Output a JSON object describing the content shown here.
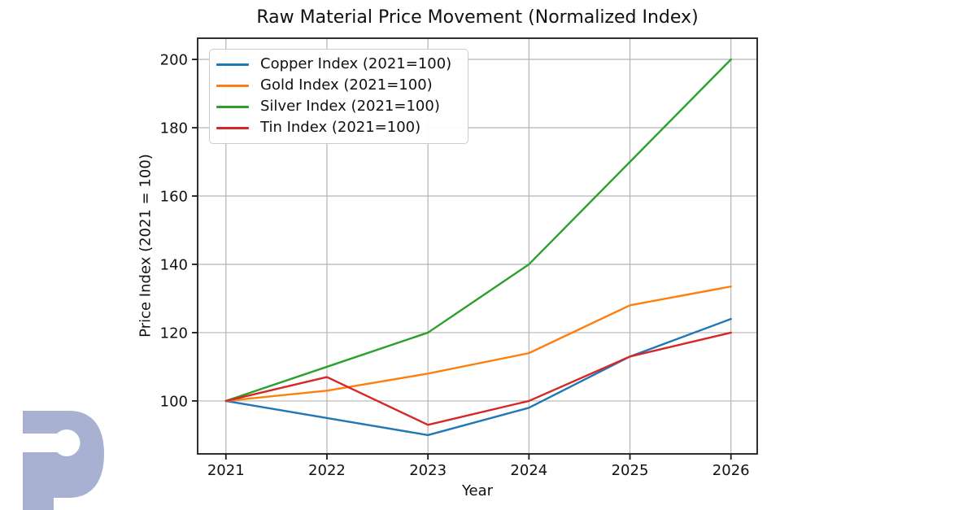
{
  "chart_data": {
    "type": "line",
    "title": "Raw Material Price Movement (Normalized Index)",
    "xlabel": "Year",
    "ylabel": "Price Index (2021 = 100)",
    "x": [
      2021,
      2022,
      2023,
      2024,
      2025,
      2026
    ],
    "series": [
      {
        "name": "Copper Index (2021=100)",
        "color": "#1f77b4",
        "values": [
          100,
          95,
          90,
          98,
          113,
          124
        ]
      },
      {
        "name": "Gold Index (2021=100)",
        "color": "#ff7f0e",
        "values": [
          100,
          103,
          108,
          114,
          128,
          133.5
        ]
      },
      {
        "name": "Silver Index (2021=100)",
        "color": "#2ca02c",
        "values": [
          100,
          110,
          120,
          140,
          170,
          200
        ]
      },
      {
        "name": "Tin Index (2021=100)",
        "color": "#d62728",
        "values": [
          100,
          107,
          93,
          100,
          113,
          120
        ]
      }
    ],
    "xticks": [
      2021,
      2022,
      2023,
      2024,
      2025,
      2026
    ],
    "yticks": [
      100,
      120,
      140,
      160,
      180,
      200
    ],
    "xlim": [
      2020.72,
      2026.26
    ],
    "ylim": [
      84.5,
      206.2
    ],
    "grid": true,
    "legend_position": "upper-left",
    "grid_color": "#b4b4b4",
    "spine_color": "#1a1a1a",
    "tick_color": "#1a1a1a",
    "text_color": "#111111"
  },
  "watermark": {
    "letter": "P",
    "color": "#a8b1d1"
  }
}
